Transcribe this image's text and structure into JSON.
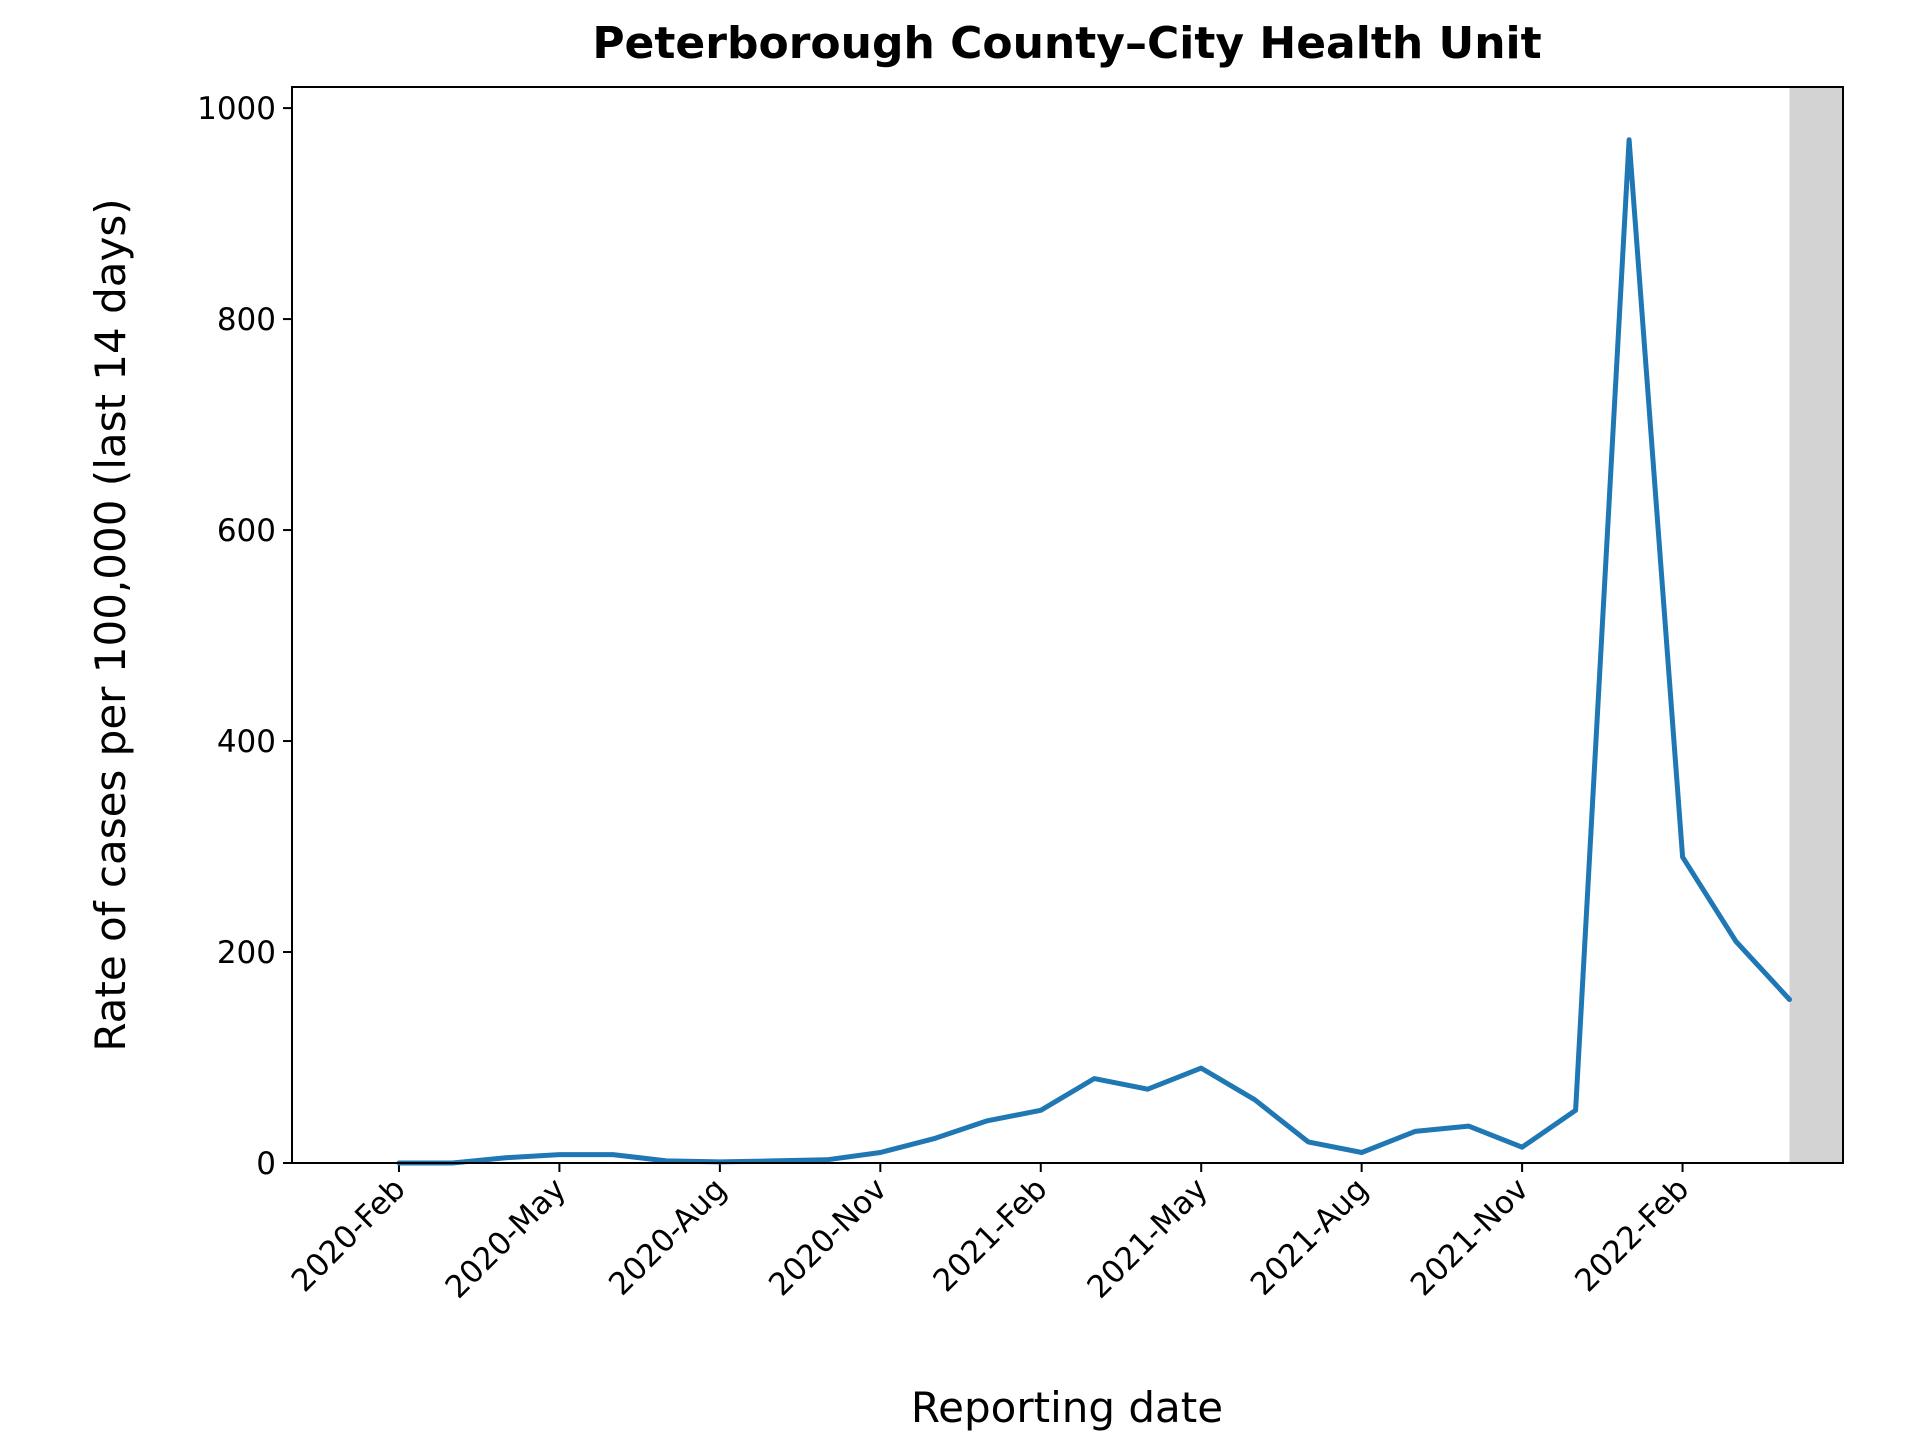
{
  "chart_data": {
    "type": "line",
    "title": "Peterborough County–City Health Unit",
    "x_label": "Reporting date",
    "y_label": "Rate of cases per 100,000 (last 14 days)",
    "x": [
      "2020-02",
      "2020-03",
      "2020-04",
      "2020-05",
      "2020-06",
      "2020-07",
      "2020-08",
      "2020-09",
      "2020-10",
      "2020-11",
      "2020-12",
      "2021-01",
      "2021-02",
      "2021-03",
      "2021-04",
      "2021-05",
      "2021-06",
      "2021-07",
      "2021-08",
      "2021-09",
      "2021-10",
      "2021-11",
      "2021-12",
      "2022-01",
      "2022-02",
      "2022-03",
      "2022-04"
    ],
    "series": [
      {
        "name": "Rate",
        "color": "#1f77b4",
        "values": [
          0,
          0,
          5,
          8,
          8,
          2,
          1,
          2,
          3,
          10,
          23,
          40,
          50,
          80,
          70,
          90,
          60,
          20,
          10,
          30,
          35,
          15,
          50,
          970,
          290,
          210,
          155
        ]
      }
    ],
    "xlim": [
      "2019-12",
      "2022-05"
    ],
    "xticks": [
      {
        "value": "2020-02",
        "label": "2020-Feb"
      },
      {
        "value": "2020-05",
        "label": "2020-May"
      },
      {
        "value": "2020-08",
        "label": "2020-Aug"
      },
      {
        "value": "2020-11",
        "label": "2020-Nov"
      },
      {
        "value": "2021-02",
        "label": "2021-Feb"
      },
      {
        "value": "2021-05",
        "label": "2021-May"
      },
      {
        "value": "2021-08",
        "label": "2021-Aug"
      },
      {
        "value": "2021-11",
        "label": "2021-Nov"
      },
      {
        "value": "2022-02",
        "label": "2022-Feb"
      }
    ],
    "ylim": [
      0,
      1020
    ],
    "yticks": [
      0,
      200,
      400,
      600,
      800,
      1000
    ],
    "shaded_range": [
      "2022-04",
      "2022-05"
    ],
    "shade_color": "#d3d3d3"
  }
}
